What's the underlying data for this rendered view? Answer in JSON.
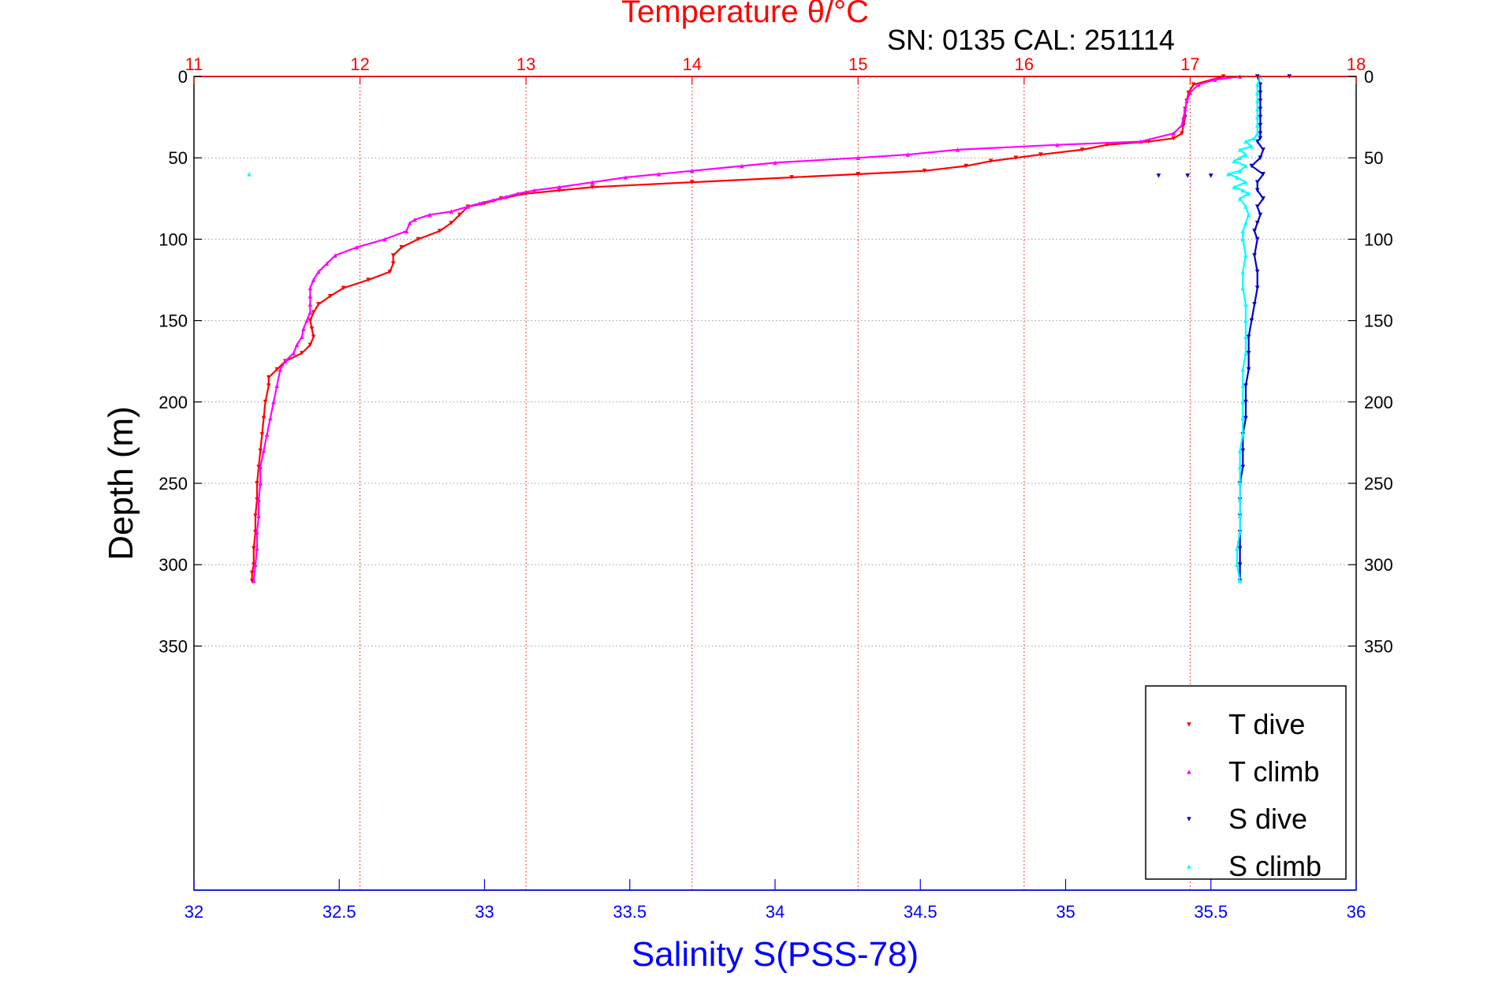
{
  "chart_data": {
    "type": "scatter",
    "title": "Temperature θ/°C",
    "subtitle": "SN: 0135  CAL: 251114",
    "ylabel": "Depth (m)",
    "xlabel": "Salinity S(PSS-78)",
    "colors": {
      "temperature_axis": "#ff0000",
      "salinity_axis": "#0000ff",
      "t_dive": "#ff0000",
      "t_climb": "#ff00ff",
      "s_dive": "#0000cc",
      "s_climb": "#00ffff",
      "grid": "#999999"
    },
    "temperature_axis": {
      "range": [
        11,
        18
      ],
      "ticks": [
        "11",
        "12",
        "13",
        "14",
        "15",
        "16",
        "17",
        "18"
      ],
      "tick_values": [
        11,
        12,
        13,
        14,
        15,
        16,
        17,
        18
      ]
    },
    "salinity_axis": {
      "range": [
        32,
        36
      ],
      "ticks": [
        "32",
        "32.5",
        "33",
        "33.5",
        "34",
        "34.5",
        "35",
        "35.5",
        "36"
      ],
      "tick_values": [
        32,
        32.5,
        33,
        33.5,
        34,
        34.5,
        35,
        35.5,
        36
      ]
    },
    "depth_axis": {
      "range": [
        0,
        500
      ],
      "reversed": true,
      "ticks": [
        "0",
        "50",
        "100",
        "150",
        "200",
        "250",
        "300",
        "350"
      ],
      "tick_values": [
        0,
        50,
        100,
        150,
        200,
        250,
        300,
        350
      ]
    },
    "grid": true,
    "legend_position": "bottom-right",
    "legend": [
      "T dive",
      "T climb",
      "S dive",
      "S climb"
    ],
    "series": [
      {
        "name": "T dive",
        "axis": "temperature",
        "marker": "triangle-down",
        "depth": [
          0,
          5,
          10,
          15,
          20,
          25,
          30,
          35,
          38,
          40,
          42,
          45,
          48,
          50,
          52,
          55,
          58,
          60,
          62,
          65,
          68,
          70,
          72,
          75,
          78,
          80,
          85,
          90,
          95,
          100,
          105,
          110,
          115,
          120,
          125,
          130,
          135,
          140,
          145,
          150,
          155,
          160,
          165,
          170,
          175,
          180,
          185,
          190,
          200,
          210,
          220,
          230,
          240,
          250,
          260,
          270,
          280,
          290,
          300,
          305,
          310
        ],
        "values": [
          17.2,
          17.02,
          16.99,
          16.98,
          16.97,
          16.97,
          16.96,
          16.95,
          16.9,
          16.75,
          16.5,
          16.35,
          16.1,
          15.95,
          15.8,
          15.65,
          15.4,
          15.0,
          14.6,
          14.0,
          13.4,
          13.2,
          13.0,
          12.85,
          12.75,
          12.65,
          12.6,
          12.55,
          12.48,
          12.35,
          12.25,
          12.2,
          12.2,
          12.18,
          12.05,
          11.9,
          11.82,
          11.75,
          11.72,
          11.7,
          11.71,
          11.72,
          11.7,
          11.65,
          11.55,
          11.5,
          11.45,
          11.45,
          11.43,
          11.42,
          11.41,
          11.4,
          11.39,
          11.38,
          11.38,
          11.37,
          11.37,
          11.36,
          11.36,
          11.35,
          11.35
        ]
      },
      {
        "name": "T climb",
        "axis": "temperature",
        "marker": "triangle-up",
        "depth": [
          0,
          2,
          5,
          10,
          15,
          20,
          25,
          30,
          35,
          40,
          42,
          45,
          48,
          50,
          53,
          55,
          58,
          60,
          62,
          65,
          68,
          70,
          72,
          74,
          76,
          78,
          80,
          83,
          85,
          88,
          90,
          95,
          100,
          105,
          110,
          115,
          120,
          125,
          130,
          135,
          140,
          145,
          150,
          155,
          160,
          165,
          170,
          175,
          180,
          190,
          200,
          210,
          220,
          230,
          240,
          250,
          260,
          270,
          280,
          290,
          300,
          310
        ],
        "values": [
          17.3,
          17.15,
          17.05,
          17.0,
          16.98,
          16.97,
          16.96,
          16.95,
          16.9,
          16.7,
          16.2,
          15.6,
          15.3,
          15.0,
          14.5,
          14.3,
          14.0,
          13.8,
          13.6,
          13.4,
          13.2,
          13.05,
          12.95,
          12.88,
          12.8,
          12.72,
          12.65,
          12.55,
          12.42,
          12.33,
          12.3,
          12.28,
          12.15,
          11.98,
          11.85,
          11.8,
          11.75,
          11.72,
          11.7,
          11.7,
          11.7,
          11.7,
          11.68,
          11.66,
          11.65,
          11.62,
          11.6,
          11.55,
          11.52,
          11.5,
          11.48,
          11.46,
          11.44,
          11.42,
          11.4,
          11.4,
          11.39,
          11.39,
          11.38,
          11.38,
          11.37,
          11.36
        ]
      },
      {
        "name": "S dive",
        "axis": "salinity",
        "marker": "triangle-down",
        "depth": [
          0,
          5,
          10,
          15,
          20,
          25,
          30,
          35,
          38,
          40,
          45,
          50,
          55,
          60,
          65,
          70,
          75,
          80,
          85,
          90,
          95,
          100,
          110,
          120,
          130,
          140,
          150,
          160,
          170,
          180,
          190,
          200,
          210,
          220,
          230,
          240,
          250,
          260,
          270,
          280,
          290,
          300,
          310
        ],
        "values": [
          35.66,
          35.67,
          35.67,
          35.67,
          35.67,
          35.67,
          35.67,
          35.67,
          35.67,
          35.66,
          35.68,
          35.67,
          35.64,
          35.68,
          35.66,
          35.66,
          35.68,
          35.66,
          35.67,
          35.66,
          35.65,
          35.66,
          35.65,
          35.66,
          35.66,
          35.65,
          35.64,
          35.63,
          35.63,
          35.63,
          35.62,
          35.62,
          35.62,
          35.61,
          35.61,
          35.61,
          35.6,
          35.6,
          35.6,
          35.6,
          35.6,
          35.6,
          35.6
        ]
      },
      {
        "name": "S climb",
        "axis": "salinity",
        "marker": "triangle-up",
        "depth": [
          0,
          5,
          10,
          15,
          20,
          25,
          30,
          35,
          38,
          40,
          43,
          45,
          48,
          50,
          52,
          55,
          58,
          60,
          62,
          65,
          68,
          70,
          72,
          75,
          80,
          85,
          90,
          95,
          100,
          110,
          120,
          130,
          140,
          150,
          160,
          170,
          180,
          190,
          200,
          210,
          220,
          230,
          240,
          250,
          260,
          270,
          280,
          290,
          300,
          310
        ],
        "values": [
          35.67,
          35.66,
          35.66,
          35.66,
          35.66,
          35.66,
          35.66,
          35.66,
          35.65,
          35.62,
          35.64,
          35.6,
          35.62,
          35.6,
          35.58,
          35.62,
          35.6,
          35.56,
          35.59,
          35.62,
          35.58,
          35.61,
          35.63,
          35.6,
          35.62,
          35.63,
          35.62,
          35.61,
          35.61,
          35.62,
          35.61,
          35.61,
          35.62,
          35.62,
          35.62,
          35.62,
          35.61,
          35.61,
          35.61,
          35.61,
          35.61,
          35.6,
          35.6,
          35.6,
          35.6,
          35.6,
          35.6,
          35.59,
          35.59,
          35.6
        ]
      }
    ],
    "outliers": [
      {
        "series": "S climb",
        "axis": "salinity",
        "depth": 60,
        "value": 32.19
      },
      {
        "series": "S dive",
        "axis": "salinity",
        "depth": 0,
        "value": 35.77
      },
      {
        "series": "S dive",
        "axis": "salinity",
        "depth": 61,
        "value": 35.32
      },
      {
        "series": "S dive",
        "axis": "salinity",
        "depth": 61,
        "value": 35.42
      },
      {
        "series": "S dive",
        "axis": "salinity",
        "depth": 61,
        "value": 35.5
      }
    ]
  }
}
